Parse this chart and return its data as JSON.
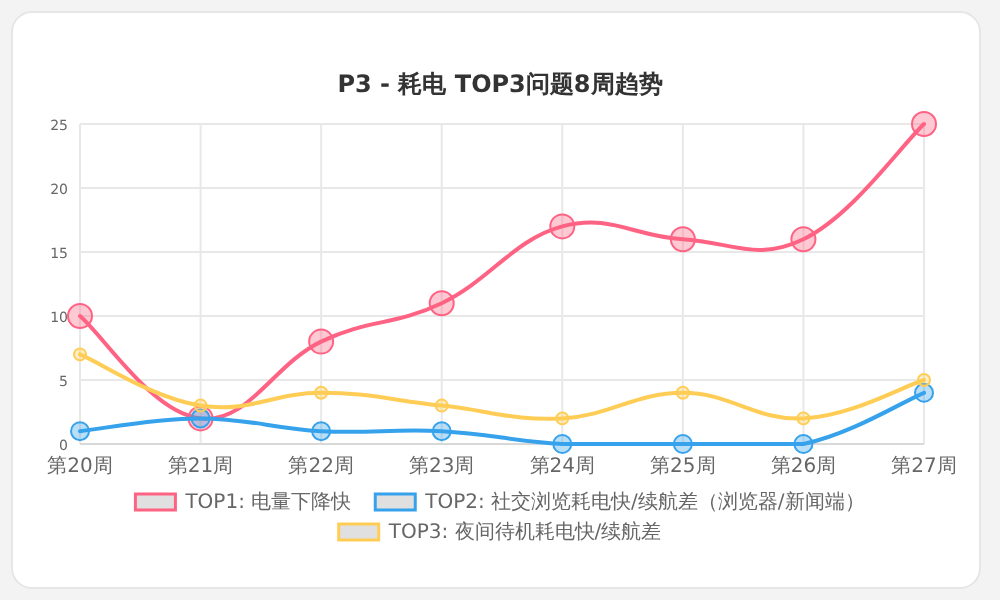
{
  "chart_data": {
    "type": "line",
    "title": "P3 - 耗电 TOP3问题8周趋势",
    "categories": [
      "第20周",
      "第21周",
      "第22周",
      "第23周",
      "第24周",
      "第25周",
      "第26周",
      "第27周"
    ],
    "series": [
      {
        "name": "TOP1: 电量下降快",
        "color": "#ff6384",
        "values": [
          10,
          2,
          8,
          11,
          17,
          16,
          16,
          25
        ]
      },
      {
        "name": "TOP2: 社交浏览耗电快/续航差（浏览器/新闻端）",
        "color": "#36a2eb",
        "values": [
          1,
          2,
          1,
          1,
          0,
          0,
          0,
          4
        ]
      },
      {
        "name": "TOP3: 夜间待机耗电快/续航差",
        "color": "#ffcd56",
        "values": [
          7,
          3,
          4,
          3,
          2,
          4,
          2,
          5
        ]
      }
    ],
    "ylim": [
      0,
      25
    ],
    "yticks": [
      0,
      5,
      10,
      15,
      20,
      25
    ],
    "grid": true,
    "legend": "bottom",
    "marker": "circle",
    "line_style": "solid"
  }
}
